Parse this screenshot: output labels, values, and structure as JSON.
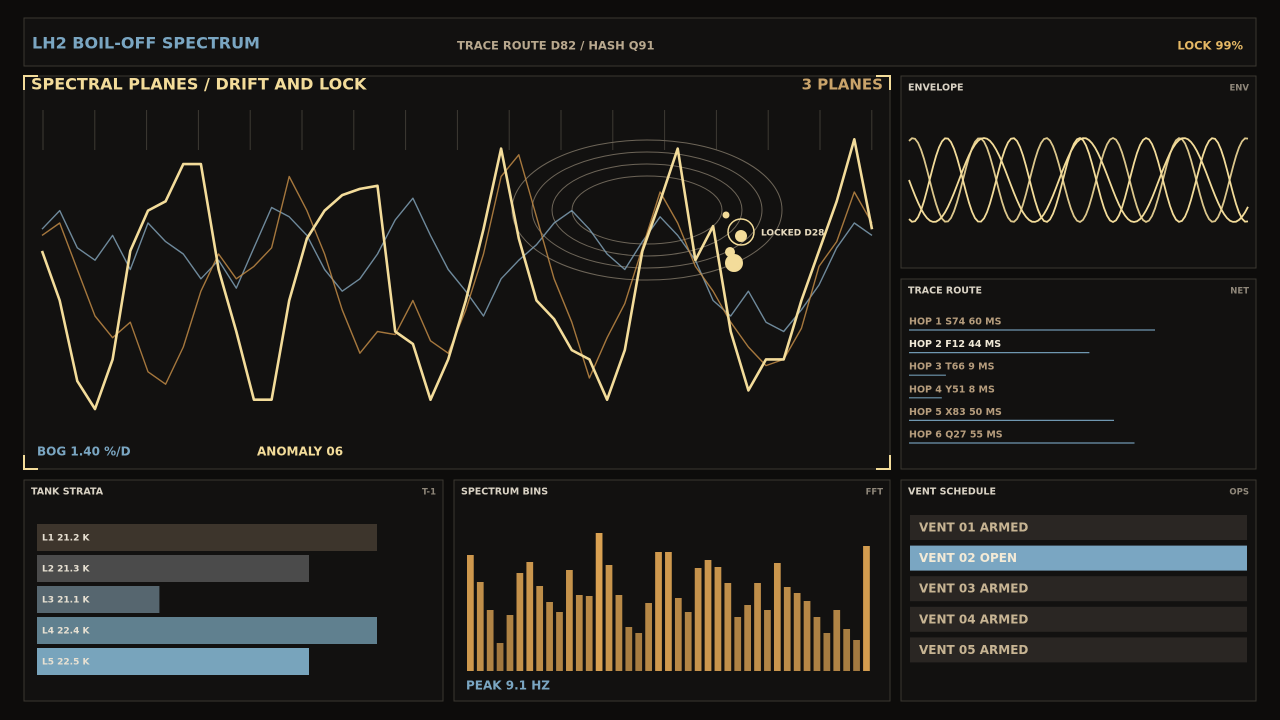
{
  "header": {
    "title": "LH2 BOIL-OFF SPECTRUM",
    "route": "TRACE ROUTE D82 / HASH Q91",
    "lock": "LOCK  99%"
  },
  "main": {
    "title": "SPECTRAL PLANES / DRIFT AND LOCK",
    "planes": "3 PLANES",
    "bog": "BOG 1.40 %/D",
    "anomaly": "ANOMALY 06",
    "lock_label": "LOCKED D28",
    "series": [
      {
        "color": "#7f9fb4",
        "values": [
          68,
          74,
          62,
          58,
          66,
          55,
          70,
          64,
          60,
          52,
          58,
          49,
          62,
          75,
          72,
          66,
          55,
          48,
          52,
          60,
          71,
          78,
          66,
          55,
          48,
          40,
          52,
          58,
          63,
          70,
          74,
          68,
          60,
          55,
          64,
          72,
          66,
          58,
          45,
          40,
          48,
          38,
          35,
          42,
          50,
          62,
          70,
          66
        ]
      },
      {
        "color": "#c08a45",
        "values": [
          66,
          70,
          55,
          40,
          33,
          38,
          22,
          18,
          30,
          48,
          60,
          52,
          56,
          62,
          85,
          74,
          60,
          42,
          28,
          35,
          34,
          45,
          32,
          28,
          42,
          60,
          85,
          92,
          72,
          52,
          38,
          20,
          33,
          44,
          62,
          80,
          70,
          56,
          48,
          38,
          30,
          24,
          26,
          36,
          56,
          64,
          80,
          70
        ]
      },
      {
        "color": "#f3dc9a",
        "values": [
          61,
          45,
          19,
          10,
          26,
          61,
          74,
          77,
          89,
          89,
          55,
          35,
          13,
          13,
          45,
          65,
          74,
          79,
          81,
          82,
          35,
          31,
          13,
          26,
          45,
          68,
          94,
          65,
          45,
          39,
          29,
          26,
          13,
          29,
          61,
          77,
          94,
          58,
          69,
          35,
          16,
          26,
          26,
          45,
          61,
          77,
          97,
          68
        ]
      }
    ]
  },
  "envelope": {
    "title": "ENVELOPE",
    "tag": "ENV"
  },
  "trace": {
    "title": "TRACE ROUTE",
    "tag": "NET",
    "active": 1,
    "hops": [
      {
        "label": "HOP 1  S74  60 MS",
        "ms": 60
      },
      {
        "label": "HOP 2  F12  44 MS",
        "ms": 44
      },
      {
        "label": "HOP 3  T66  9 MS",
        "ms": 9
      },
      {
        "label": "HOP 4  Y51  8 MS",
        "ms": 8
      },
      {
        "label": "HOP 5  X83  50 MS",
        "ms": 50
      },
      {
        "label": "HOP 6  Q27  55 MS",
        "ms": 55
      }
    ]
  },
  "strata": {
    "title": "TANK STRATA",
    "tag": "T-1",
    "layers": [
      {
        "label": "L1  21.2 K",
        "fill": 100,
        "color": "#3d352c"
      },
      {
        "label": "L2  21.3 K",
        "fill": 80,
        "color": "#4b4b4b"
      },
      {
        "label": "L3  21.1 K",
        "fill": 36,
        "color": "#56666f"
      },
      {
        "label": "L4  22.4 K",
        "fill": 100,
        "color": "#60808f"
      },
      {
        "label": "L5  22.5 K",
        "fill": 80,
        "color": "#78a4bc"
      }
    ]
  },
  "bins": {
    "title": "SPECTRUM BINS",
    "tag": "FFT",
    "peak": "PEAK  9.1 HZ",
    "color": "#d9a152",
    "values": [
      116,
      89,
      61,
      28,
      56,
      98,
      109,
      85,
      69,
      59,
      101,
      76,
      75,
      138,
      106,
      76,
      44,
      38,
      68,
      119,
      119,
      73,
      59,
      103,
      111,
      104,
      88,
      54,
      66,
      88,
      61,
      108,
      84,
      78,
      70,
      54,
      38,
      61,
      42,
      31,
      125
    ]
  },
  "vents": {
    "title": "VENT SCHEDULE",
    "tag": "OPS",
    "active": 1,
    "rows": [
      "VENT 01  ARMED",
      "VENT 02  OPEN",
      "VENT 03  ARMED",
      "VENT 04  ARMED",
      "VENT 05  ARMED"
    ]
  }
}
